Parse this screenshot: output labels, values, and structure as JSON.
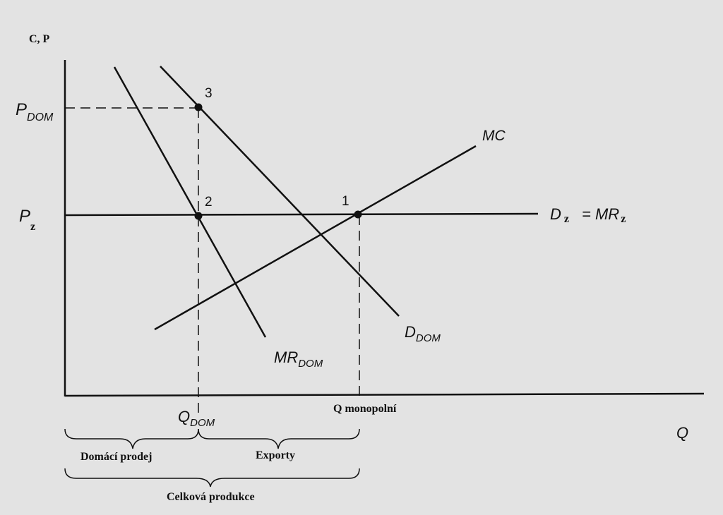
{
  "axes": {
    "y_label": "C, P",
    "x_label": "Q"
  },
  "curves": {
    "mc": "MC",
    "d_dom_main": "D",
    "d_dom_sub": "DOM",
    "mr_dom_main": "MR",
    "mr_dom_sub": "DOM",
    "dz_main": "D",
    "dz_sub": "z",
    "dz_eq": "= MR",
    "mrz_sub": "z"
  },
  "price_labels": {
    "p_dom_main": "P",
    "p_dom_sub": "DOM",
    "p_z_main": "P",
    "p_z_sub": "z"
  },
  "quantity_labels": {
    "q_dom_main": "Q",
    "q_dom_sub": "DOM",
    "q_monopoly": "Q monopolní"
  },
  "points": {
    "p1": "1",
    "p2": "2",
    "p3": "3"
  },
  "braces": {
    "domestic_sales": "Domácí prodej",
    "exports": "Exporty",
    "total_production": "Celková produkce"
  },
  "colors": {
    "background": "#e3e3e3",
    "ink": "#111111"
  }
}
